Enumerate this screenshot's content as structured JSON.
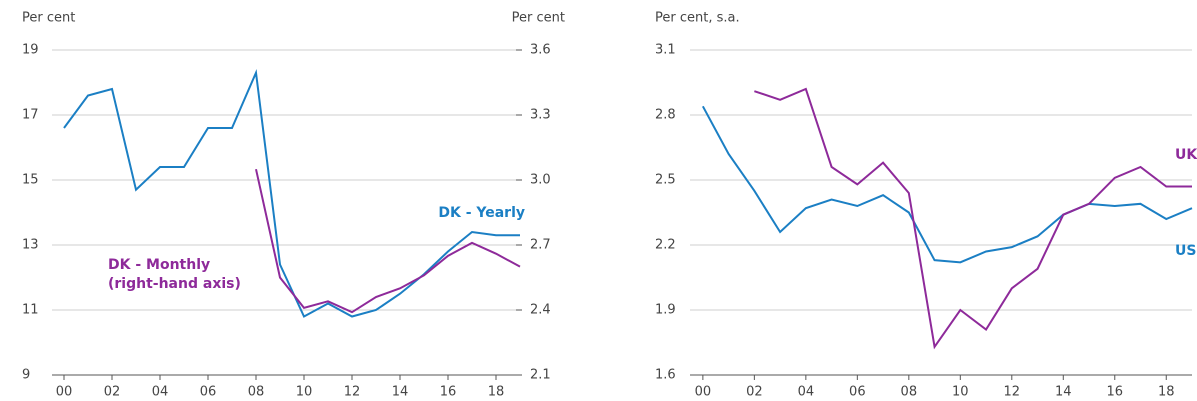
{
  "chart_data": [
    {
      "type": "line",
      "y_label": "Per cent",
      "y2_label": "Per cent",
      "x": [
        2000,
        2001,
        2002,
        2003,
        2004,
        2005,
        2006,
        2007,
        2008,
        2009,
        2010,
        2011,
        2012,
        2013,
        2014,
        2015,
        2016,
        2017,
        2018,
        2019
      ],
      "xlim": [
        1999.5,
        2019
      ],
      "xticks": [
        {
          "value": 2000,
          "label": "00"
        },
        {
          "value": 2002,
          "label": "02"
        },
        {
          "value": 2004,
          "label": "04"
        },
        {
          "value": 2006,
          "label": "06"
        },
        {
          "value": 2008,
          "label": "08"
        },
        {
          "value": 2010,
          "label": "10"
        },
        {
          "value": 2012,
          "label": "12"
        },
        {
          "value": 2014,
          "label": "14"
        },
        {
          "value": 2016,
          "label": "16"
        },
        {
          "value": 2018,
          "label": "18"
        }
      ],
      "ylim": [
        9,
        19
      ],
      "yticks": [
        9,
        11,
        13,
        15,
        17,
        19
      ],
      "y2lim": [
        2.1,
        3.6
      ],
      "y2ticks": [
        2.1,
        2.4,
        2.7,
        {
          "value": 3.0,
          "label": "3.0"
        },
        3.3,
        3.6
      ],
      "grid": true,
      "series": [
        {
          "name": "DK - Yearly",
          "color": "#1b7fc4",
          "values": [
            16.6,
            17.6,
            17.8,
            14.7,
            15.4,
            15.4,
            16.6,
            16.6,
            18.3,
            12.4,
            10.8,
            11.2,
            10.8,
            11.0,
            11.5,
            12.1,
            12.8,
            13.4,
            13.3,
            13.3
          ]
        },
        {
          "name": "DK - Monthly",
          "color": "#8e2a9a",
          "axis": "y2",
          "values": [
            null,
            null,
            null,
            null,
            null,
            null,
            null,
            null,
            3.05,
            2.55,
            2.41,
            2.44,
            2.39,
            2.46,
            2.5,
            2.56,
            2.65,
            2.71,
            2.66,
            2.6
          ]
        }
      ],
      "annotations": [
        {
          "lines": [
            "DK - Yearly"
          ],
          "color": "#1b7fc4"
        },
        {
          "lines": [
            "DK - Monthly",
            "(right-hand axis)"
          ],
          "color": "#8e2a9a"
        }
      ]
    },
    {
      "type": "line",
      "y_label": "Per cent, s.a.",
      "x": [
        2000,
        2001,
        2002,
        2003,
        2004,
        2005,
        2006,
        2007,
        2008,
        2009,
        2010,
        2011,
        2012,
        2013,
        2014,
        2015,
        2016,
        2017,
        2018,
        2019
      ],
      "xlim": [
        1999.5,
        2019
      ],
      "xticks": [
        {
          "value": 2000,
          "label": "00"
        },
        {
          "value": 2002,
          "label": "02"
        },
        {
          "value": 2004,
          "label": "04"
        },
        {
          "value": 2006,
          "label": "06"
        },
        {
          "value": 2008,
          "label": "08"
        },
        {
          "value": 2010,
          "label": "10"
        },
        {
          "value": 2012,
          "label": "12"
        },
        {
          "value": 2014,
          "label": "14"
        },
        {
          "value": 2016,
          "label": "16"
        },
        {
          "value": 2018,
          "label": "18"
        }
      ],
      "ylim": [
        1.6,
        3.1
      ],
      "yticks": [
        1.6,
        1.9,
        2.2,
        2.5,
        2.8,
        3.1
      ],
      "grid": true,
      "series": [
        {
          "name": "US",
          "color": "#1b7fc4",
          "values": [
            2.84,
            2.62,
            2.45,
            2.26,
            2.37,
            2.41,
            2.38,
            2.43,
            2.35,
            2.13,
            2.12,
            2.17,
            2.19,
            2.24,
            2.34,
            2.39,
            2.38,
            2.39,
            2.32,
            2.37
          ]
        },
        {
          "name": "UK",
          "color": "#8e2a9a",
          "values": [
            null,
            null,
            2.91,
            2.87,
            2.92,
            2.56,
            2.48,
            2.58,
            2.44,
            1.73,
            1.9,
            1.81,
            2.0,
            2.09,
            2.34,
            2.39,
            2.51,
            2.56,
            2.47,
            2.47
          ]
        }
      ],
      "annotations": [
        {
          "lines": [
            "UK"
          ],
          "color": "#8e2a9a"
        },
        {
          "lines": [
            "US"
          ],
          "color": "#1b7fc4"
        }
      ]
    }
  ]
}
